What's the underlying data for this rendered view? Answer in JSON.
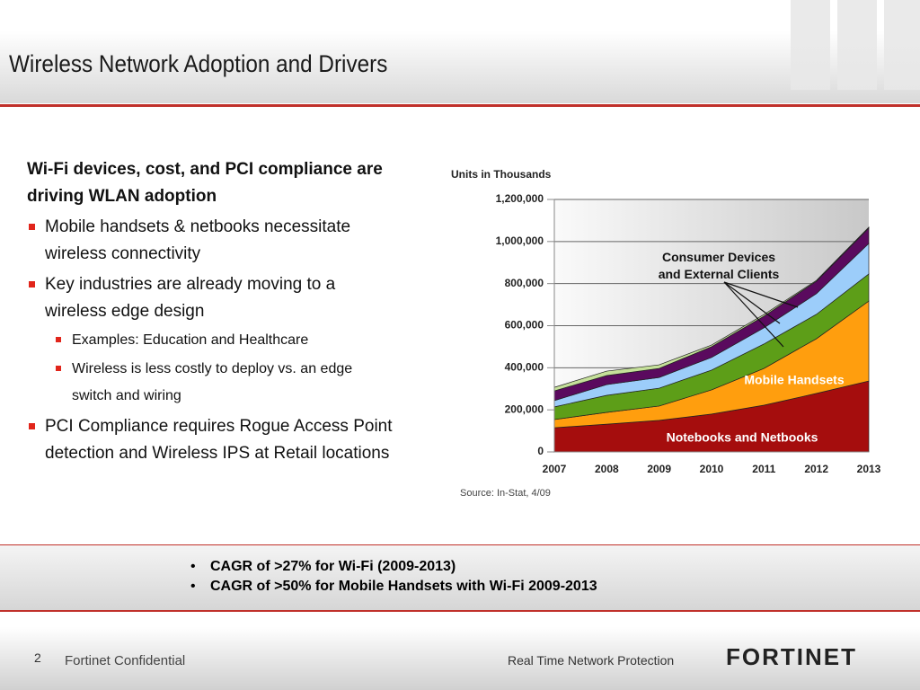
{
  "title": "Wireless Network Adoption and Drivers",
  "body": {
    "heading": "Wi-Fi devices, cost, and PCI compliance are driving WLAN adoption",
    "bullets": [
      {
        "level": 1,
        "text": "Mobile handsets & netbooks necessitate wireless connectivity"
      },
      {
        "level": 1,
        "text": "Key industries are already moving to a wireless edge design"
      },
      {
        "level": 2,
        "text": "Examples: Education and Healthcare"
      },
      {
        "level": 2,
        "text": "Wireless is less costly to deploy vs. an edge switch and wiring"
      },
      {
        "level": 1,
        "text": "PCI Compliance requires Rogue Access Point detection and Wireless IPS at Retail locations"
      }
    ]
  },
  "chart_data": {
    "type": "stacked-area",
    "y_label": "Units in Thousands",
    "source": "Source: In-Stat, 4/09",
    "categories": [
      "2007",
      "2008",
      "2009",
      "2010",
      "2011",
      "2012",
      "2013"
    ],
    "series": [
      {
        "name": "Notebooks and Netbooks",
        "color": "#a50d0d",
        "values": [
          115000,
          132000,
          150000,
          180000,
          222000,
          278000,
          337000
        ]
      },
      {
        "name": "Mobile Handsets",
        "color": "#ff9e0e",
        "values": [
          39000,
          56000,
          68000,
          115000,
          175000,
          260000,
          380000
        ]
      },
      {
        "color": "#5d9e18",
        "values": [
          60000,
          81000,
          85000,
          94000,
          116000,
          116000,
          129000
        ]
      },
      {
        "color": "#9ccdfa",
        "values": [
          30000,
          51000,
          51000,
          60000,
          77000,
          98000,
          145000
        ]
      },
      {
        "color": "#5a0a5e",
        "values": [
          46000,
          43000,
          43000,
          51000,
          55000,
          59000,
          73000
        ]
      },
      {
        "color": "#c5e09a",
        "values": [
          17000,
          21000,
          17000,
          8000,
          8000,
          4000,
          4000
        ]
      }
    ],
    "annotation": "Consumer Devices and External Clients",
    "ylim": [
      0,
      1200000
    ],
    "yticks": [
      0,
      {
        "value": 200000,
        "label": "200,000"
      },
      {
        "value": 400000,
        "label": "400,000"
      },
      {
        "value": 600000,
        "label": "600,000"
      },
      {
        "value": 800000,
        "label": "800,000"
      },
      {
        "value": 1000000,
        "label": "1,000,000"
      },
      {
        "value": 1200000,
        "label": "1,200,000"
      }
    ],
    "grid": true
  },
  "callouts": [
    "CAGR of >27% for Wi-Fi (2009-2013)",
    "CAGR of >50% for Mobile Handsets with Wi-Fi 2009-2013"
  ],
  "footer": {
    "page": "2",
    "confidential": "Fortinet Confidential",
    "tagline": "Real Time Network Protection",
    "logo": "FORTINET"
  }
}
